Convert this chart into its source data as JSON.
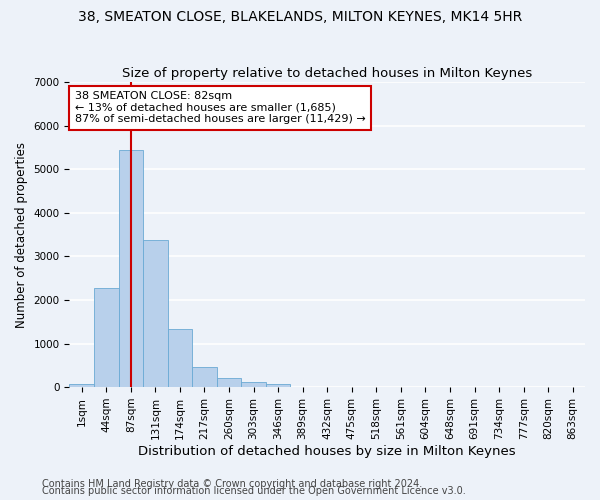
{
  "title": "38, SMEATON CLOSE, BLAKELANDS, MILTON KEYNES, MK14 5HR",
  "subtitle": "Size of property relative to detached houses in Milton Keynes",
  "xlabel": "Distribution of detached houses by size in Milton Keynes",
  "ylabel": "Number of detached properties",
  "footer_line1": "Contains HM Land Registry data © Crown copyright and database right 2024.",
  "footer_line2": "Contains public sector information licensed under the Open Government Licence v3.0.",
  "bar_labels": [
    "1sqm",
    "44sqm",
    "87sqm",
    "131sqm",
    "174sqm",
    "217sqm",
    "260sqm",
    "303sqm",
    "346sqm",
    "389sqm",
    "432sqm",
    "475sqm",
    "518sqm",
    "561sqm",
    "604sqm",
    "648sqm",
    "691sqm",
    "734sqm",
    "777sqm",
    "820sqm",
    "863sqm"
  ],
  "bar_values": [
    60,
    2270,
    5450,
    3380,
    1340,
    460,
    200,
    120,
    60,
    0,
    0,
    0,
    0,
    0,
    0,
    0,
    0,
    0,
    0,
    0,
    0
  ],
  "bar_color": "#b8d0eb",
  "bar_edge_color": "#6aaad4",
  "background_color": "#edf2f9",
  "grid_color": "#ffffff",
  "annotation_text": "38 SMEATON CLOSE: 82sqm\n← 13% of detached houses are smaller (1,685)\n87% of semi-detached houses are larger (11,429) →",
  "annotation_box_color": "#ffffff",
  "annotation_box_edge_color": "#cc0000",
  "vline_x": 2.0,
  "vline_color": "#cc0000",
  "ylim": [
    0,
    7000
  ],
  "yticks": [
    0,
    1000,
    2000,
    3000,
    4000,
    5000,
    6000,
    7000
  ],
  "title_fontsize": 10,
  "subtitle_fontsize": 9.5,
  "xlabel_fontsize": 9.5,
  "ylabel_fontsize": 8.5,
  "tick_fontsize": 7.5,
  "annotation_fontsize": 8,
  "footer_fontsize": 7
}
